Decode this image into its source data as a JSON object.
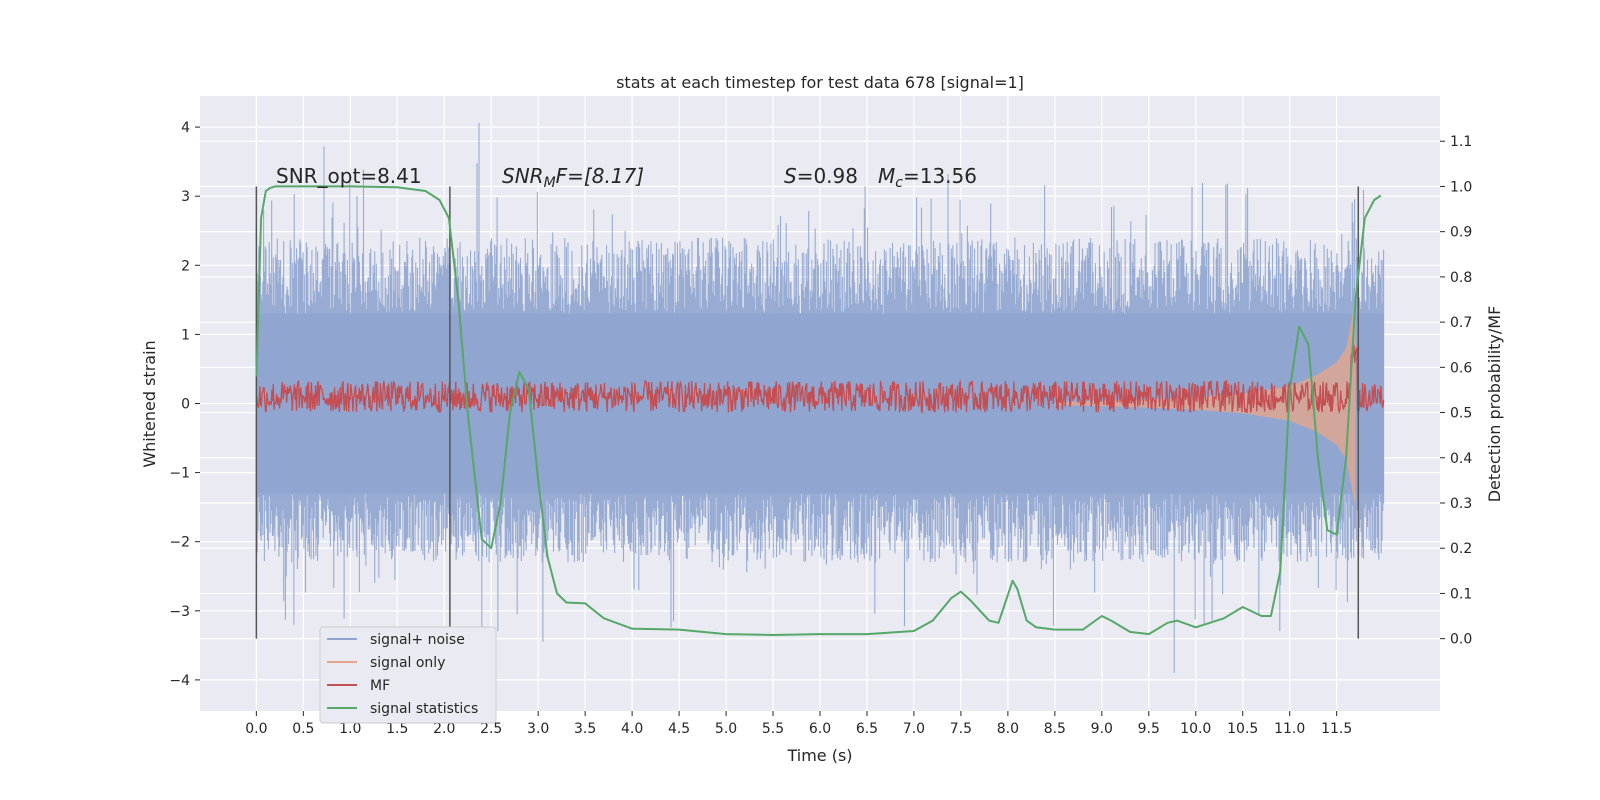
{
  "chart_data": {
    "type": "line",
    "title": "stats at each timestep for test data 678 [signal=1]",
    "xlabel": "Time (s)",
    "ylabel": "Whitened strain",
    "ylabel_right": "Detection probability/MF",
    "xlim": [
      -0.6,
      12.6
    ],
    "ylim": [
      -4.45,
      4.45
    ],
    "ylim_right": [
      -0.16,
      1.2
    ],
    "x_ticks": [
      0.0,
      0.5,
      1.0,
      1.5,
      2.0,
      2.5,
      3.0,
      3.5,
      4.0,
      4.5,
      5.0,
      5.5,
      6.0,
      6.5,
      7.0,
      7.5,
      8.0,
      8.5,
      9.0,
      9.5,
      10.0,
      10.5,
      11.0,
      11.5
    ],
    "x_tick_labels": [
      "0.0",
      "0.5",
      "1.0",
      "1.5",
      "2.0",
      "2.5",
      "3.0",
      "3.5",
      "4.0",
      "4.5",
      "5.0",
      "5.5",
      "6.0",
      "6.5",
      "7.0",
      "7.5",
      "8.0",
      "8.5",
      "9.0",
      "9.5",
      "10.0",
      "10.5",
      "11.0",
      "11.5"
    ],
    "y_ticks": [
      4,
      3,
      2,
      1,
      0,
      -1,
      -2,
      -3,
      -4
    ],
    "y_tick_labels": [
      "4",
      "3",
      "2",
      "1",
      "0",
      "−1",
      "−2",
      "−3",
      "−4"
    ],
    "y_right_ticks": [
      1.1,
      1.0,
      0.9,
      0.8,
      0.7,
      0.6,
      0.5,
      0.4,
      0.3,
      0.2,
      0.1,
      0.0
    ],
    "y_right_tick_labels": [
      "1.1",
      "1.0",
      "0.9",
      "0.8",
      "0.7",
      "0.6",
      "0.5",
      "0.4",
      "0.3",
      "0.2",
      "0.1",
      "0.0"
    ],
    "annotations": {
      "snr_opt": "SNR_opt=8.41",
      "snr_mf": "SNR",
      "snr_mf_sub": "M",
      "snr_mf_rest": "F=[8.17]",
      "s_label": "S",
      "s_value": "=0.98",
      "mc_label": "M",
      "mc_sub": "c",
      "mc_value": "=13.56"
    },
    "vertical_markers_x": [
      0.0,
      2.06,
      11.73
    ],
    "grid": true,
    "legend_position": "lower-left",
    "series": [
      {
        "name": "signal+ noise",
        "color": "#8ea4cf",
        "description_level": "band",
        "x": [
          0.0,
          12.0
        ],
        "envelope_upper_typical": 2.2,
        "envelope_lower_typical": -2.0,
        "peaks": [
          [
            0.72,
            3.72
          ],
          [
            2.37,
            4.06
          ],
          [
            9.77,
            -3.9
          ],
          [
            2.4,
            -3.7
          ],
          [
            0.4,
            -3.2
          ],
          [
            3.05,
            -3.45
          ]
        ]
      },
      {
        "name": "signal only",
        "color": "#e8a58a",
        "x": [
          8.5,
          9.0,
          9.5,
          10.0,
          10.5,
          11.0,
          11.3,
          11.5,
          11.6,
          11.7
        ],
        "amplitude": [
          0.02,
          0.04,
          0.06,
          0.09,
          0.14,
          0.25,
          0.42,
          0.6,
          0.8,
          1.5
        ]
      },
      {
        "name": "MF",
        "color": "#c44e52",
        "level_min": 0.5,
        "level_typical_max": 0.57,
        "x": [
          0.0,
          12.0
        ]
      },
      {
        "name": "signal statistics",
        "color": "#55a868",
        "x": [
          0.0,
          0.05,
          0.1,
          0.15,
          0.2,
          0.3,
          0.5,
          1.0,
          1.5,
          1.8,
          1.95,
          2.05,
          2.15,
          2.25,
          2.4,
          2.5,
          2.6,
          2.7,
          2.8,
          2.9,
          3.0,
          3.1,
          3.2,
          3.3,
          3.5,
          3.7,
          4.0,
          4.5,
          5.0,
          5.5,
          6.0,
          6.5,
          7.0,
          7.2,
          7.4,
          7.5,
          7.6,
          7.8,
          7.9,
          8.05,
          8.1,
          8.2,
          8.3,
          8.5,
          8.8,
          9.0,
          9.1,
          9.3,
          9.5,
          9.7,
          9.8,
          10.0,
          10.3,
          10.5,
          10.7,
          10.8,
          10.9,
          11.0,
          11.1,
          11.2,
          11.3,
          11.4,
          11.5,
          11.6,
          11.7,
          11.8,
          11.9,
          11.97
        ],
        "y": [
          0.58,
          0.93,
          0.99,
          0.997,
          1.0,
          1.0,
          1.0,
          1.0,
          0.998,
          0.99,
          0.97,
          0.93,
          0.75,
          0.5,
          0.22,
          0.2,
          0.3,
          0.5,
          0.59,
          0.55,
          0.35,
          0.18,
          0.1,
          0.08,
          0.078,
          0.045,
          0.022,
          0.02,
          0.01,
          0.008,
          0.01,
          0.01,
          0.017,
          0.04,
          0.09,
          0.104,
          0.085,
          0.04,
          0.035,
          0.128,
          0.11,
          0.04,
          0.025,
          0.02,
          0.02,
          0.05,
          0.04,
          0.015,
          0.01,
          0.035,
          0.04,
          0.025,
          0.045,
          0.07,
          0.05,
          0.05,
          0.15,
          0.55,
          0.69,
          0.65,
          0.4,
          0.24,
          0.23,
          0.4,
          0.75,
          0.93,
          0.97,
          0.98
        ]
      }
    ]
  }
}
